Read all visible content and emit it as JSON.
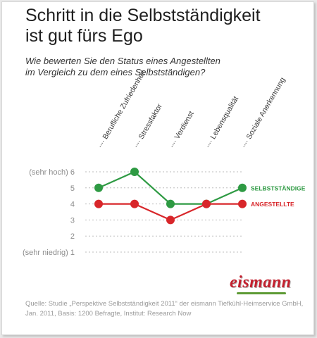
{
  "title_line1": "Schritt in die Selbstständigkeit",
  "title_line2": "ist gut fürs Ego",
  "subtitle_line1": "Wie bewerten Sie den Status eines Angestellten",
  "subtitle_line2": "im Vergleich zu dem eines Selbstständigen?",
  "brand": "eismann",
  "source_line1": "Quelle: Studie „Perspektive Selbstständigkeit 2011“ der eismann Tiefkühl-Heimservice GmbH,",
  "source_line2": "Jan. 2011, Basis: 1200 Befragte, Institut: Research Now",
  "chart_data": {
    "type": "line",
    "categories": [
      "Berufliche Zufriedenheit",
      "Stressfaktor",
      "Verdienst",
      "Lebensqualität",
      "Soziale Anerkennung"
    ],
    "y_tick_labels": [
      "(sehr niedrig) 1",
      "2",
      "3",
      "4",
      "5",
      "(sehr hoch) 6"
    ],
    "ylim": [
      1,
      6
    ],
    "grid": true,
    "legend": "right (end-of-line labels)",
    "series": [
      {
        "name": "SELBSTSTÄNDIGE",
        "values": [
          5,
          6,
          4,
          4,
          5
        ],
        "color": "#2e9a43"
      },
      {
        "name": "ANGESTELLTE",
        "values": [
          4,
          4,
          3,
          4,
          4
        ],
        "color": "#d8262a"
      }
    ]
  }
}
